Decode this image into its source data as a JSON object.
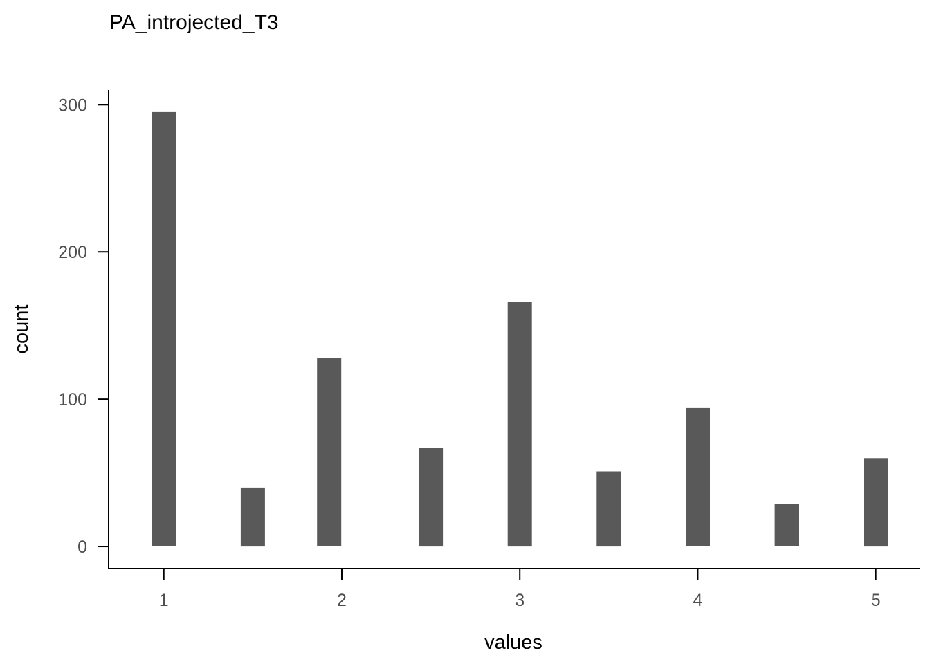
{
  "chart_data": {
    "type": "bar",
    "title": "PA_introjected_T3",
    "xlabel": "values",
    "ylabel": "count",
    "x": [
      1.0,
      1.5,
      1.929,
      2.5,
      3.0,
      3.5,
      4.0,
      4.5,
      5.0
    ],
    "values": [
      295,
      40,
      128,
      67,
      166,
      51,
      94,
      29,
      60
    ],
    "xlim": [
      0.69,
      5.25
    ],
    "ylim": [
      -15,
      310
    ],
    "x_ticks": [
      1,
      2,
      3,
      4,
      5
    ],
    "y_ticks": [
      0,
      100,
      200,
      300
    ],
    "x_tick_labels": [
      "1",
      "2",
      "3",
      "4",
      "5"
    ],
    "y_tick_labels": [
      "0",
      "100",
      "200",
      "300"
    ],
    "grid": false,
    "bar_color": "#595959"
  }
}
